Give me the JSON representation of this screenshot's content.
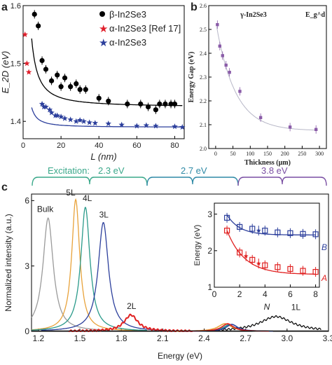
{
  "panel_labels": {
    "a": "a",
    "b": "b",
    "c": "c"
  },
  "brackets": {
    "excitation_label": "Excitation:",
    "items": [
      {
        "label": "2.3 eV",
        "color": "#3aa88a"
      },
      {
        "label": "2.7 eV",
        "color": "#2f8aa6"
      },
      {
        "label": "3.8 eV",
        "color": "#7a4fa3"
      }
    ]
  },
  "chart_data": [
    {
      "id": "a",
      "type": "scatter",
      "xlabel": "L (nm)",
      "ylabel": "E_2D (eV)",
      "xlim": [
        0,
        85
      ],
      "ylim": [
        1.37,
        1.6
      ],
      "xticks": [
        "0",
        "20",
        "40",
        "60",
        "80"
      ],
      "yticks": [
        "1.4",
        "1.5",
        "1.6"
      ],
      "legend": [
        "β-In2Se3",
        "α-In2Se3 [Ref 17]",
        "α-In2Se3"
      ],
      "series": [
        {
          "name": "β-In2Se3",
          "color": "#000000",
          "marker": "circle",
          "x": [
            6,
            8,
            10,
            12,
            15,
            18,
            20,
            22,
            25,
            28,
            30,
            33,
            40,
            45,
            55,
            62,
            66,
            70,
            72,
            75,
            78,
            80
          ],
          "y": [
            1.585,
            1.565,
            1.505,
            1.49,
            1.47,
            1.48,
            1.46,
            1.475,
            1.46,
            1.465,
            1.455,
            1.455,
            1.44,
            1.435,
            1.43,
            1.43,
            1.425,
            1.42,
            1.43,
            1.43,
            1.43,
            1.43
          ]
        },
        {
          "name": "α-In2Se3 [Ref 17]",
          "color": "#e0202c",
          "marker": "star",
          "x": [
            1,
            2,
            3
          ],
          "y": [
            1.55,
            1.5,
            1.485
          ]
        },
        {
          "name": "α-In2Se3",
          "color": "#2c3f9c",
          "marker": "star",
          "x": [
            10,
            11,
            12,
            14,
            15,
            17,
            18,
            20,
            22,
            25,
            28,
            30,
            32,
            35,
            38,
            45,
            52,
            60,
            65,
            70,
            80,
            84
          ],
          "y": [
            1.43,
            1.425,
            1.425,
            1.42,
            1.415,
            1.41,
            1.41,
            1.408,
            1.405,
            1.403,
            1.4,
            1.402,
            1.4,
            1.398,
            1.397,
            1.396,
            1.394,
            1.392,
            1.393,
            1.392,
            1.391,
            1.39
          ]
        }
      ]
    },
    {
      "id": "b",
      "type": "scatter",
      "title": "γ-In2Se3",
      "annotation": "E_g^d",
      "xlabel": "Thickness (μm)",
      "ylabel": "Energy Gap (eV)",
      "xlim": [
        -20,
        320
      ],
      "ylim": [
        2.0,
        2.6
      ],
      "xticks": [
        "0",
        "50",
        "100",
        "150",
        "200",
        "250",
        "300"
      ],
      "yticks": [
        "2.0",
        "2.1",
        "2.2",
        "2.3",
        "2.4",
        "2.5",
        "2.6"
      ],
      "color": "#8a5ca8",
      "x": [
        5,
        12,
        20,
        30,
        40,
        70,
        130,
        215,
        290
      ],
      "y": [
        2.52,
        2.43,
        2.39,
        2.35,
        2.32,
        2.24,
        2.13,
        2.09,
        2.08
      ]
    },
    {
      "id": "c-main",
      "type": "line",
      "xlabel": "Energy (eV)",
      "ylabel": "Normalized intensity (a.u.)",
      "xlim": [
        1.15,
        3.3
      ],
      "ylim": [
        0,
        6.3
      ],
      "xticks": [
        "1.2",
        "1.5",
        "1.8",
        "2.1",
        "2.4",
        "2.7",
        "3.0",
        "3.3"
      ],
      "yticks": [
        "0",
        "3",
        "6"
      ],
      "series": [
        {
          "name": "Bulk",
          "color": "#9a9a9a",
          "center": 1.27,
          "peak": 5.2,
          "width": 0.045
        },
        {
          "name": "5L",
          "color": "#e8a23a",
          "center": 1.47,
          "peak": 6.05,
          "width": 0.035
        },
        {
          "name": "4L",
          "color": "#2a9a8a",
          "center": 1.54,
          "peak": 5.7,
          "width": 0.04
        },
        {
          "name": "3L",
          "color": "#2c3f9c",
          "center": 1.67,
          "peak": 5.0,
          "width": 0.045
        },
        {
          "name": "2L",
          "color": "#e02020",
          "center": 1.87,
          "peak": 0.75,
          "width": 0.06
        },
        {
          "name": "1L",
          "color": "#111111",
          "center": 2.92,
          "peak": 0.68,
          "width": 0.14
        }
      ],
      "secondary_peaks": [
        {
          "color": "#e8a23a",
          "center": 2.55,
          "peak": 0.35,
          "width": 0.06
        },
        {
          "color": "#2a9a8a",
          "center": 2.58,
          "peak": 0.3,
          "width": 0.05
        },
        {
          "color": "#2c3f9c",
          "center": 2.6,
          "peak": 0.32,
          "width": 0.05
        },
        {
          "color": "#e02020",
          "center": 2.57,
          "peak": 0.35,
          "width": 0.05
        }
      ]
    },
    {
      "id": "c-inset",
      "type": "scatter",
      "xlabel": "N",
      "ylabel": "Energy (eV)",
      "xlim": [
        0,
        8.3
      ],
      "ylim": [
        1.0,
        3.3
      ],
      "xticks": [
        "0",
        "2",
        "4",
        "6",
        "8"
      ],
      "yticks": [
        "1",
        "2",
        "3"
      ],
      "series": [
        {
          "name": "B",
          "color": "#2c3f9c",
          "x": [
            1,
            2,
            3,
            3.5,
            4,
            5,
            6,
            7,
            8
          ],
          "y": [
            2.9,
            2.65,
            2.6,
            2.55,
            2.55,
            2.5,
            2.48,
            2.46,
            2.45
          ]
        },
        {
          "name": "A",
          "color": "#e02020",
          "x": [
            1,
            2,
            2.5,
            3,
            3.5,
            4,
            5,
            6,
            7,
            8
          ],
          "y": [
            2.55,
            1.95,
            1.85,
            1.75,
            1.65,
            1.6,
            1.55,
            1.5,
            1.45,
            1.42
          ]
        }
      ]
    }
  ]
}
